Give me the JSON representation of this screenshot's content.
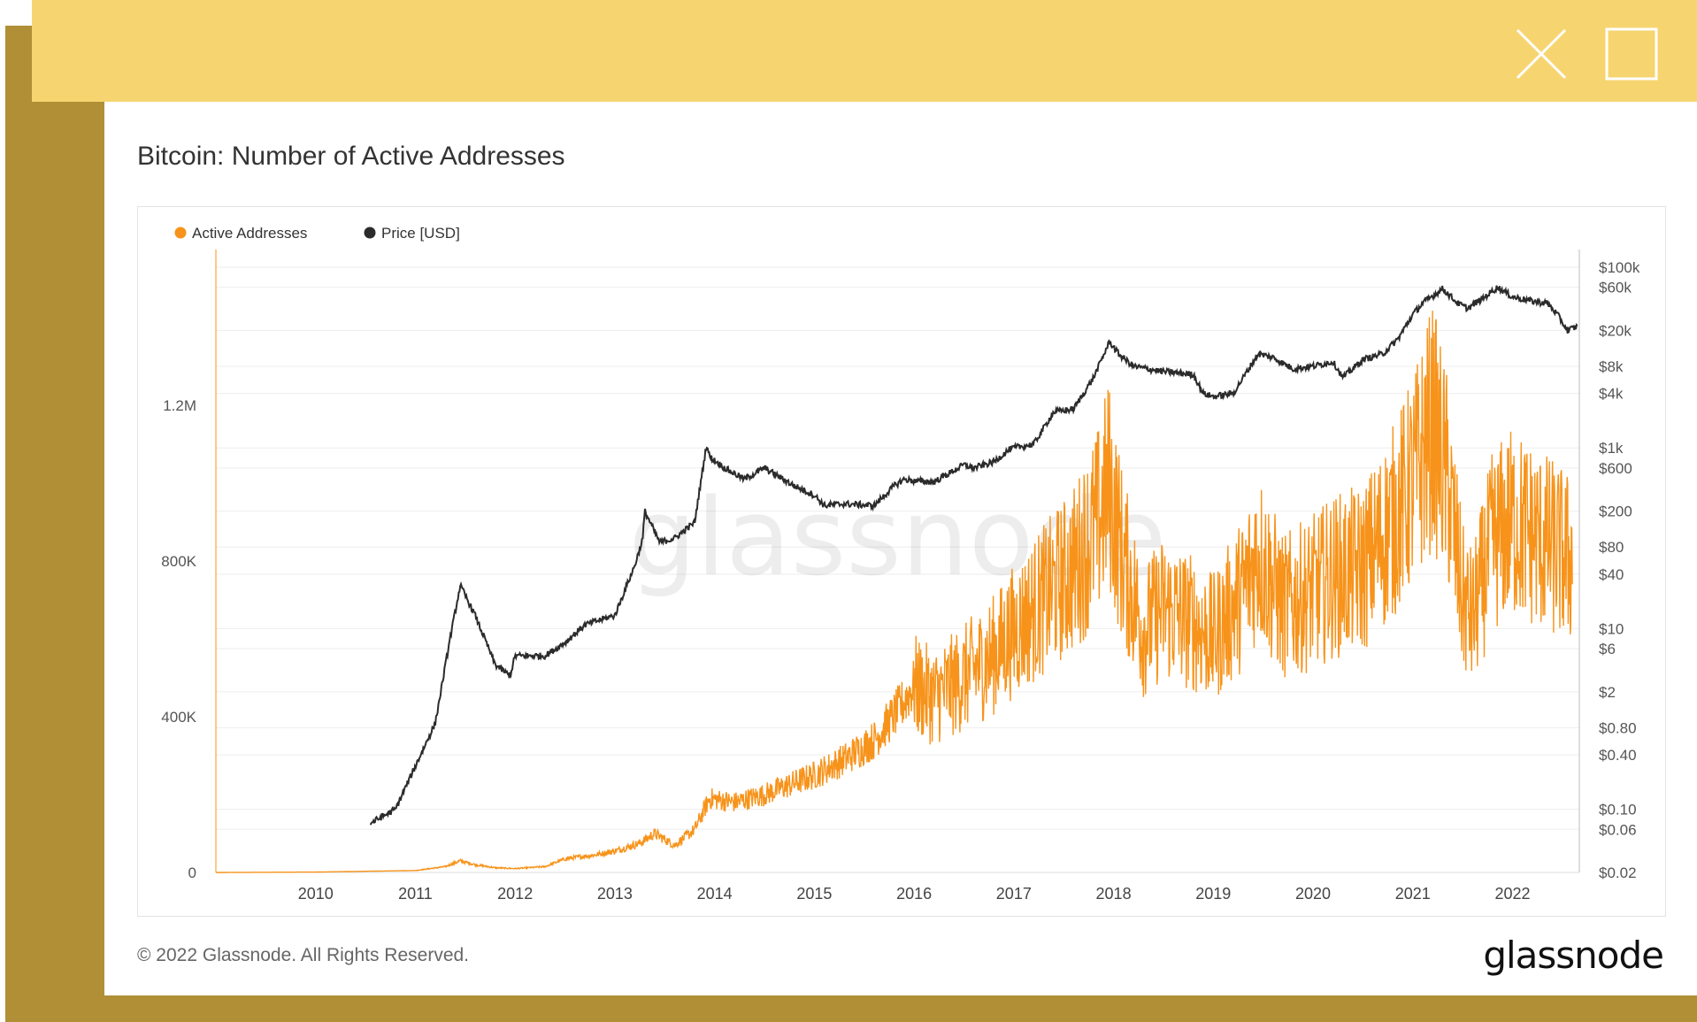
{
  "window": {
    "close_icon": "close-icon",
    "maximize_icon": "maximize-icon"
  },
  "title": "Bitcoin: Number of Active Addresses",
  "watermark": "glassnode",
  "footer": {
    "copyright": "© 2022 Glassnode. All Rights Reserved.",
    "logo_text": "glassnode"
  },
  "colors": {
    "frame_dark": "#b08f36",
    "frame_light": "#f6d570",
    "active_addresses": "#f7931a",
    "price": "#2b2b2b"
  },
  "chart_data": {
    "type": "line",
    "title": "Bitcoin: Number of Active Addresses",
    "legend": [
      {
        "name": "Active Addresses",
        "color": "#f7931a"
      },
      {
        "name": "Price [USD]",
        "color": "#2b2b2b"
      }
    ],
    "legend_position": "top-left",
    "x_range": [
      2009.0,
      2022.67
    ],
    "x_ticks": [
      {
        "value": 2010,
        "label": "2010"
      },
      {
        "value": 2011,
        "label": "2011"
      },
      {
        "value": 2012,
        "label": "2012"
      },
      {
        "value": 2013,
        "label": "2013"
      },
      {
        "value": 2014,
        "label": "2014"
      },
      {
        "value": 2015,
        "label": "2015"
      },
      {
        "value": 2016,
        "label": "2016"
      },
      {
        "value": 2017,
        "label": "2017"
      },
      {
        "value": 2018,
        "label": "2018"
      },
      {
        "value": 2019,
        "label": "2019"
      },
      {
        "value": 2020,
        "label": "2020"
      },
      {
        "value": 2021,
        "label": "2021"
      },
      {
        "value": 2022,
        "label": "2022"
      }
    ],
    "left_axis": {
      "label": "Active Addresses",
      "range": [
        0,
        1600000
      ],
      "ticks": [
        {
          "value": 0,
          "label": "0"
        },
        {
          "value": 400000,
          "label": "400K"
        },
        {
          "value": 800000,
          "label": "800K"
        },
        {
          "value": 1200000,
          "label": "1.2M"
        }
      ]
    },
    "right_axis": {
      "label": "Price [USD]",
      "scale": "log",
      "range": [
        0.02,
        100000
      ],
      "ticks": [
        {
          "value": 100000,
          "label": "$100k"
        },
        {
          "value": 60000,
          "label": "$60k"
        },
        {
          "value": 20000,
          "label": "$20k"
        },
        {
          "value": 8000,
          "label": "$8k"
        },
        {
          "value": 4000,
          "label": "$4k"
        },
        {
          "value": 1000,
          "label": "$1k"
        },
        {
          "value": 600,
          "label": "$600"
        },
        {
          "value": 200,
          "label": "$200"
        },
        {
          "value": 80,
          "label": "$80"
        },
        {
          "value": 40,
          "label": "$40"
        },
        {
          "value": 10,
          "label": "$10"
        },
        {
          "value": 6,
          "label": "$6"
        },
        {
          "value": 2,
          "label": "$2"
        },
        {
          "value": 0.8,
          "label": "$0.80"
        },
        {
          "value": 0.4,
          "label": "$0.40"
        },
        {
          "value": 0.1,
          "label": "$0.10"
        },
        {
          "value": 0.06,
          "label": "$0.06"
        },
        {
          "value": 0.02,
          "label": "$0.02"
        }
      ]
    },
    "series": [
      {
        "name": "Active Addresses",
        "axis": "left",
        "x": [
          2009.0,
          2010.0,
          2010.5,
          2011.0,
          2011.3,
          2011.45,
          2011.6,
          2011.8,
          2012.0,
          2012.3,
          2012.5,
          2012.8,
          2013.0,
          2013.25,
          2013.4,
          2013.6,
          2013.8,
          2013.95,
          2014.2,
          2014.5,
          2014.8,
          2015.0,
          2015.3,
          2015.6,
          2015.85,
          2016.0,
          2016.2,
          2016.5,
          2016.8,
          2017.0,
          2017.3,
          2017.6,
          2017.85,
          2017.95,
          2018.1,
          2018.3,
          2018.5,
          2018.8,
          2019.0,
          2019.3,
          2019.45,
          2019.7,
          2020.0,
          2020.2,
          2020.5,
          2020.8,
          2021.0,
          2021.2,
          2021.35,
          2021.5,
          2021.6,
          2021.8,
          2022.0,
          2022.3,
          2022.6
        ],
        "values": [
          0,
          1000,
          3000,
          5000,
          15000,
          30000,
          20000,
          12000,
          10000,
          15000,
          35000,
          45000,
          55000,
          75000,
          100000,
          70000,
          110000,
          190000,
          180000,
          200000,
          230000,
          250000,
          290000,
          340000,
          420000,
          480000,
          450000,
          500000,
          560000,
          620000,
          700000,
          780000,
          900000,
          1000000,
          800000,
          620000,
          680000,
          640000,
          600000,
          720000,
          820000,
          680000,
          720000,
          760000,
          780000,
          900000,
          1000000,
          1150000,
          1000000,
          700000,
          650000,
          850000,
          900000,
          850000,
          800000
        ]
      },
      {
        "name": "Price [USD]",
        "axis": "right",
        "x": [
          2010.55,
          2010.8,
          2011.0,
          2011.2,
          2011.35,
          2011.45,
          2011.6,
          2011.8,
          2011.95,
          2012.0,
          2012.3,
          2012.5,
          2012.7,
          2012.9,
          2013.0,
          2013.2,
          2013.28,
          2013.3,
          2013.45,
          2013.6,
          2013.8,
          2013.92,
          2013.95,
          2014.1,
          2014.3,
          2014.5,
          2014.8,
          2015.0,
          2015.1,
          2015.3,
          2015.6,
          2015.8,
          2015.9,
          2016.0,
          2016.2,
          2016.5,
          2016.6,
          2016.8,
          2016.95,
          2017.0,
          2017.2,
          2017.4,
          2017.6,
          2017.8,
          2017.96,
          2018.05,
          2018.2,
          2018.5,
          2018.8,
          2018.9,
          2019.0,
          2019.2,
          2019.45,
          2019.6,
          2019.8,
          2020.0,
          2020.2,
          2020.3,
          2020.5,
          2020.7,
          2020.85,
          2021.0,
          2021.1,
          2021.3,
          2021.45,
          2021.55,
          2021.7,
          2021.85,
          2022.0,
          2022.2,
          2022.35,
          2022.45,
          2022.55,
          2022.65
        ],
        "values": [
          0.07,
          0.1,
          0.3,
          0.9,
          8,
          30,
          14,
          4,
          3,
          5,
          5,
          7,
          11,
          13,
          14,
          50,
          100,
          200,
          90,
          100,
          150,
          1100,
          800,
          600,
          450,
          600,
          380,
          300,
          230,
          240,
          230,
          380,
          450,
          430,
          420,
          650,
          600,
          700,
          950,
          1000,
          1100,
          2500,
          2700,
          6000,
          15000,
          11000,
          8000,
          7000,
          6500,
          4000,
          3700,
          4000,
          11000,
          10000,
          7500,
          8000,
          9000,
          6000,
          9500,
          11000,
          16000,
          30000,
          40000,
          58000,
          40000,
          35000,
          45000,
          60000,
          47000,
          42000,
          40000,
          30000,
          20000,
          22000
        ]
      }
    ]
  }
}
